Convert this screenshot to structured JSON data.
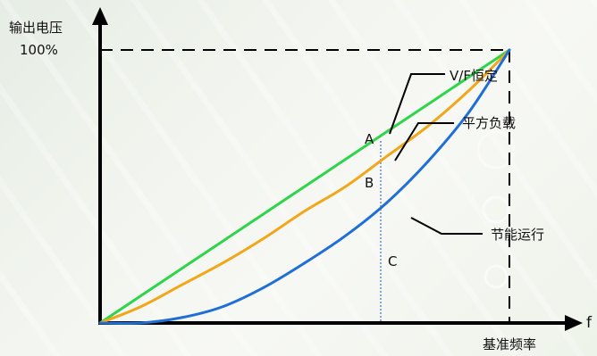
{
  "chart_data": {
    "type": "line",
    "ylabel": "输出电压",
    "y_max_label": "100%",
    "xlabel": "f",
    "x_base_label": "基准频率",
    "ylim": [
      0,
      1
    ],
    "xlim": [
      0,
      1
    ],
    "x": [
      0,
      0.1,
      0.2,
      0.3,
      0.4,
      0.5,
      0.6,
      0.7,
      0.8,
      0.9,
      1.0
    ],
    "series": [
      {
        "name": "V/F恒定",
        "color": "#2ed44a",
        "values": [
          0,
          0.1,
          0.2,
          0.3,
          0.4,
          0.5,
          0.6,
          0.7,
          0.8,
          0.9,
          1.0
        ]
      },
      {
        "name": "平方负载",
        "color": "#f2a61a",
        "values": [
          0,
          0.06,
          0.14,
          0.22,
          0.31,
          0.41,
          0.5,
          0.61,
          0.72,
          0.85,
          1.0
        ]
      },
      {
        "name": "节能运行",
        "color": "#1f6fd6",
        "values": [
          0,
          0.0,
          0.02,
          0.06,
          0.13,
          0.22,
          0.32,
          0.44,
          0.59,
          0.77,
          1.0
        ]
      }
    ],
    "points": [
      {
        "label": "A",
        "x": 0.68,
        "y": 0.68
      },
      {
        "label": "B",
        "x": 0.68,
        "y": 0.5
      },
      {
        "label": "C",
        "x": 0.68,
        "y": 0.28
      }
    ]
  },
  "colors": {
    "axis": "#000000",
    "dashed": "#000000",
    "dotted": "#6a82d6"
  }
}
